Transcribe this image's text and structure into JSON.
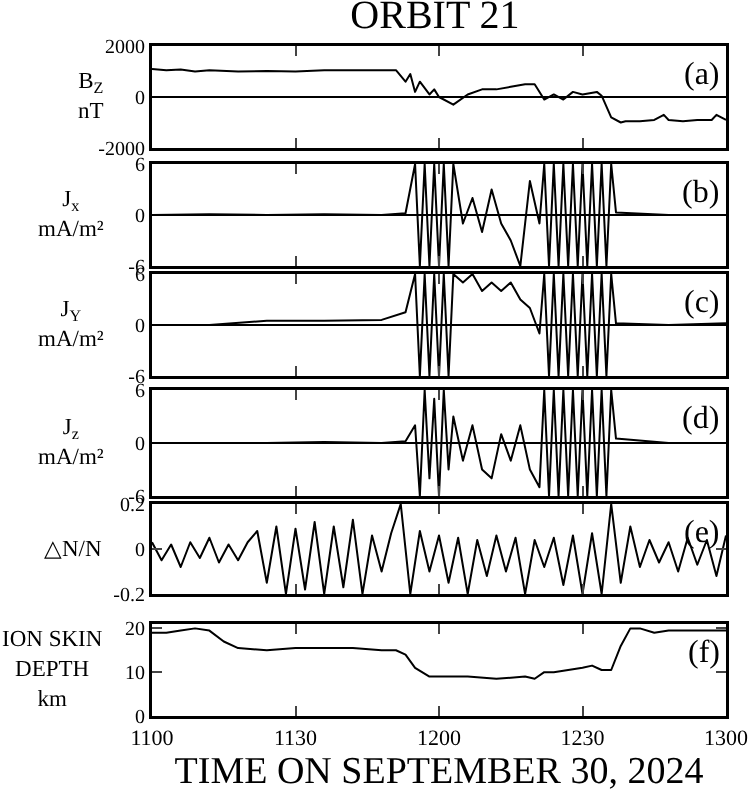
{
  "chart_data": [
    {
      "type": "line",
      "title": "ORBIT 21",
      "ylabel": "B$_{Z}$\nnT",
      "annotations": [
        "(a)"
      ],
      "xlim": [
        "2024-09-30T11:00",
        "2024-09-30T13:00"
      ],
      "xticks": [
        {
          "value": "2024-09-30T11:00",
          "label": null
        },
        {
          "value": "2024-09-30T11:30",
          "label": null
        },
        {
          "value": "2024-09-30T12:00",
          "label": null
        },
        {
          "value": "2024-09-30T12:30",
          "label": null
        },
        {
          "value": "2024-09-30T13:00",
          "label": null
        }
      ],
      "ylim": [
        -2000,
        2000
      ],
      "yticks": [
        -2000,
        0,
        2000
      ],
      "tick_labels": "y",
      "ref_lines": [
        {
          "axis": "y",
          "value": 0
        }
      ],
      "series": [
        {
          "color": "#000000",
          "x": [
            "2024-09-30T11:00",
            "2024-09-30T11:03",
            "2024-09-30T11:06",
            "2024-09-30T11:09",
            "2024-09-30T11:12",
            "2024-09-30T11:18",
            "2024-09-30T11:24",
            "2024-09-30T11:30",
            "2024-09-30T11:36",
            "2024-09-30T11:42",
            "2024-09-30T11:51",
            "2024-09-30T11:53",
            "2024-09-30T11:54",
            "2024-09-30T11:55",
            "2024-09-30T11:56",
            "2024-09-30T11:58",
            "2024-09-30T11:59",
            "2024-09-30T12:00",
            "2024-09-30T12:03",
            "2024-09-30T12:06",
            "2024-09-30T12:09",
            "2024-09-30T12:12",
            "2024-09-30T12:15",
            "2024-09-30T12:18",
            "2024-09-30T12:20",
            "2024-09-30T12:22",
            "2024-09-30T12:24",
            "2024-09-30T12:26",
            "2024-09-30T12:28",
            "2024-09-30T12:30",
            "2024-09-30T12:33",
            "2024-09-30T12:34",
            "2024-09-30T12:36",
            "2024-09-30T12:38",
            "2024-09-30T12:39",
            "2024-09-30T12:42",
            "2024-09-30T12:45",
            "2024-09-30T12:47",
            "2024-09-30T12:48",
            "2024-09-30T12:51",
            "2024-09-30T12:54",
            "2024-09-30T12:57",
            "2024-09-30T12:58",
            "2024-09-30T13:00"
          ],
          "values": [
            1100,
            1050,
            1080,
            1000,
            1050,
            1000,
            1020,
            1000,
            1050,
            1050,
            1050,
            600,
            900,
            200,
            600,
            100,
            300,
            0,
            -300,
            100,
            300,
            300,
            400,
            500,
            500,
            -100,
            100,
            -100,
            200,
            100,
            200,
            50,
            -800,
            -1000,
            -950,
            -950,
            -900,
            -700,
            -900,
            -950,
            -900,
            -900,
            -700,
            -900
          ]
        }
      ]
    },
    {
      "type": "line",
      "ylabel": "J$_{x}$\nmA/m²",
      "annotations": [
        "(b)"
      ],
      "xlim": [
        "2024-09-30T11:00",
        "2024-09-30T13:00"
      ],
      "xticks": [
        {
          "value": "2024-09-30T11:00",
          "label": null
        },
        {
          "value": "2024-09-30T11:30",
          "label": null
        },
        {
          "value": "2024-09-30T12:00",
          "label": null
        },
        {
          "value": "2024-09-30T12:30",
          "label": null
        },
        {
          "value": "2024-09-30T13:00",
          "label": null
        }
      ],
      "ylim": [
        -6,
        6
      ],
      "yticks": [
        -6,
        0,
        6
      ],
      "tick_labels": "y",
      "ref_lines": [
        {
          "axis": "y",
          "value": 0
        }
      ],
      "series": [
        {
          "color": "#000000",
          "x": [
            "2024-09-30T11:00",
            "2024-09-30T11:12",
            "2024-09-30T11:24",
            "2024-09-30T11:36",
            "2024-09-30T11:48",
            "2024-09-30T11:53",
            "2024-09-30T11:55",
            "2024-09-30T11:56",
            "2024-09-30T11:57",
            "2024-09-30T11:58",
            "2024-09-30T11:59",
            "2024-09-30T12:00",
            "2024-09-30T12:01",
            "2024-09-30T12:02",
            "2024-09-30T12:03",
            "2024-09-30T12:05",
            "2024-09-30T12:07",
            "2024-09-30T12:09",
            "2024-09-30T12:11",
            "2024-09-30T12:13",
            "2024-09-30T12:15",
            "2024-09-30T12:17",
            "2024-09-30T12:19",
            "2024-09-30T12:21",
            "2024-09-30T12:22",
            "2024-09-30T12:23",
            "2024-09-30T12:24",
            "2024-09-30T12:25",
            "2024-09-30T12:26",
            "2024-09-30T12:27",
            "2024-09-30T12:28",
            "2024-09-30T12:29",
            "2024-09-30T12:30",
            "2024-09-30T12:31",
            "2024-09-30T12:32",
            "2024-09-30T12:33",
            "2024-09-30T12:34",
            "2024-09-30T12:35",
            "2024-09-30T12:36",
            "2024-09-30T12:37",
            "2024-09-30T12:48",
            "2024-09-30T13:00"
          ],
          "values": [
            0,
            0.1,
            0,
            0.1,
            0,
            0.2,
            6,
            -6,
            6,
            -6,
            6,
            -6,
            6,
            -6,
            6,
            -1,
            2,
            -2,
            3,
            -1,
            -3,
            -6,
            4,
            -1,
            6,
            -6,
            6,
            -6,
            6,
            -6,
            6,
            -6,
            6,
            -6,
            6,
            -6,
            6,
            -6,
            6,
            0.3,
            0,
            0
          ]
        }
      ]
    },
    {
      "type": "line",
      "ylabel": "J$_{Y}$\nmA/m²",
      "annotations": [
        "(c)"
      ],
      "xlim": [
        "2024-09-30T11:00",
        "2024-09-30T13:00"
      ],
      "xticks": [
        {
          "value": "2024-09-30T11:00",
          "label": null
        },
        {
          "value": "2024-09-30T11:30",
          "label": null
        },
        {
          "value": "2024-09-30T12:00",
          "label": null
        },
        {
          "value": "2024-09-30T12:30",
          "label": null
        },
        {
          "value": "2024-09-30T13:00",
          "label": null
        }
      ],
      "ylim": [
        -6,
        6
      ],
      "yticks": [
        -6,
        0,
        6
      ],
      "tick_labels": "y",
      "ref_lines": [
        {
          "axis": "y",
          "value": 0
        }
      ],
      "series": [
        {
          "color": "#000000",
          "x": [
            "2024-09-30T11:00",
            "2024-09-30T11:12",
            "2024-09-30T11:24",
            "2024-09-30T11:36",
            "2024-09-30T11:48",
            "2024-09-30T11:53",
            "2024-09-30T11:55",
            "2024-09-30T11:56",
            "2024-09-30T11:57",
            "2024-09-30T11:58",
            "2024-09-30T11:59",
            "2024-09-30T12:00",
            "2024-09-30T12:01",
            "2024-09-30T12:02",
            "2024-09-30T12:03",
            "2024-09-30T12:05",
            "2024-09-30T12:07",
            "2024-09-30T12:09",
            "2024-09-30T12:11",
            "2024-09-30T12:13",
            "2024-09-30T12:15",
            "2024-09-30T12:17",
            "2024-09-30T12:19",
            "2024-09-30T12:21",
            "2024-09-30T12:22",
            "2024-09-30T12:23",
            "2024-09-30T12:24",
            "2024-09-30T12:25",
            "2024-09-30T12:26",
            "2024-09-30T12:27",
            "2024-09-30T12:28",
            "2024-09-30T12:29",
            "2024-09-30T12:30",
            "2024-09-30T12:31",
            "2024-09-30T12:32",
            "2024-09-30T12:33",
            "2024-09-30T12:34",
            "2024-09-30T12:35",
            "2024-09-30T12:36",
            "2024-09-30T12:37",
            "2024-09-30T12:48",
            "2024-09-30T13:00"
          ],
          "values": [
            0,
            0,
            0.5,
            0.5,
            0.6,
            1.5,
            6,
            -6,
            6,
            -6,
            6,
            -6,
            6,
            -6,
            6,
            5,
            6,
            4,
            5,
            4,
            5,
            3,
            2,
            -1,
            6,
            -6,
            6,
            -6,
            6,
            -6,
            6,
            -6,
            6,
            -6,
            6,
            -6,
            6,
            -6,
            6,
            0.2,
            0,
            0.2
          ]
        }
      ]
    },
    {
      "type": "line",
      "ylabel": "J$_{z}$\nmA/m²",
      "annotations": [
        "(d)"
      ],
      "xlim": [
        "2024-09-30T11:00",
        "2024-09-30T13:00"
      ],
      "xticks": [
        {
          "value": "2024-09-30T11:00",
          "label": null
        },
        {
          "value": "2024-09-30T11:30",
          "label": null
        },
        {
          "value": "2024-09-30T12:00",
          "label": null
        },
        {
          "value": "2024-09-30T12:30",
          "label": null
        },
        {
          "value": "2024-09-30T13:00",
          "label": null
        }
      ],
      "ylim": [
        -6,
        6
      ],
      "yticks": [
        -6,
        0,
        6
      ],
      "tick_labels": "y",
      "ref_lines": [
        {
          "axis": "y",
          "value": 0
        }
      ],
      "series": [
        {
          "color": "#000000",
          "x": [
            "2024-09-30T11:00",
            "2024-09-30T11:12",
            "2024-09-30T11:24",
            "2024-09-30T11:36",
            "2024-09-30T11:48",
            "2024-09-30T11:53",
            "2024-09-30T11:55",
            "2024-09-30T11:56",
            "2024-09-30T11:57",
            "2024-09-30T11:58",
            "2024-09-30T11:59",
            "2024-09-30T12:00",
            "2024-09-30T12:01",
            "2024-09-30T12:02",
            "2024-09-30T12:03",
            "2024-09-30T12:05",
            "2024-09-30T12:07",
            "2024-09-30T12:09",
            "2024-09-30T12:11",
            "2024-09-30T12:13",
            "2024-09-30T12:15",
            "2024-09-30T12:17",
            "2024-09-30T12:19",
            "2024-09-30T12:21",
            "2024-09-30T12:22",
            "2024-09-30T12:23",
            "2024-09-30T12:24",
            "2024-09-30T12:25",
            "2024-09-30T12:26",
            "2024-09-30T12:27",
            "2024-09-30T12:28",
            "2024-09-30T12:29",
            "2024-09-30T12:30",
            "2024-09-30T12:31",
            "2024-09-30T12:32",
            "2024-09-30T12:33",
            "2024-09-30T12:34",
            "2024-09-30T12:35",
            "2024-09-30T12:36",
            "2024-09-30T12:37",
            "2024-09-30T12:48",
            "2024-09-30T13:00"
          ],
          "values": [
            0,
            0,
            0,
            0.1,
            0,
            0.2,
            2,
            -6,
            6,
            -4,
            5,
            -6,
            6,
            -3,
            3,
            -2,
            2,
            -3,
            -4,
            1,
            -2,
            2,
            -3,
            -5,
            6,
            -6,
            6,
            -6,
            6,
            -6,
            6,
            -6,
            6,
            -6,
            6,
            -6,
            6,
            -6,
            6,
            0.5,
            0,
            0
          ]
        }
      ]
    },
    {
      "type": "line",
      "ylabel": "△N/N",
      "annotations": [
        "(e)"
      ],
      "xlim": [
        "2024-09-30T11:00",
        "2024-09-30T13:00"
      ],
      "xticks": [
        {
          "value": "2024-09-30T11:00",
          "label": null
        },
        {
          "value": "2024-09-30T11:30",
          "label": null
        },
        {
          "value": "2024-09-30T12:00",
          "label": null
        },
        {
          "value": "2024-09-30T12:30",
          "label": null
        },
        {
          "value": "2024-09-30T13:00",
          "label": null
        }
      ],
      "ylim": [
        -0.2,
        0.2
      ],
      "yticks": [
        -0.2,
        0,
        0.2
      ],
      "tick_labels": "y",
      "series": [
        {
          "color": "#000000",
          "x": [
            "2024-09-30T11:00",
            "2024-09-30T11:02",
            "2024-09-30T11:04",
            "2024-09-30T11:06",
            "2024-09-30T11:08",
            "2024-09-30T11:10",
            "2024-09-30T11:12",
            "2024-09-30T11:14",
            "2024-09-30T11:16",
            "2024-09-30T11:18",
            "2024-09-30T11:20",
            "2024-09-30T11:22",
            "2024-09-30T11:24",
            "2024-09-30T11:26",
            "2024-09-30T11:28",
            "2024-09-30T11:30",
            "2024-09-30T11:32",
            "2024-09-30T11:34",
            "2024-09-30T11:36",
            "2024-09-30T11:38",
            "2024-09-30T11:40",
            "2024-09-30T11:42",
            "2024-09-30T11:44",
            "2024-09-30T11:46",
            "2024-09-30T11:48",
            "2024-09-30T11:50",
            "2024-09-30T11:52",
            "2024-09-30T11:54",
            "2024-09-30T11:56",
            "2024-09-30T11:58",
            "2024-09-30T12:00",
            "2024-09-30T12:02",
            "2024-09-30T12:04",
            "2024-09-30T12:06",
            "2024-09-30T12:08",
            "2024-09-30T12:10",
            "2024-09-30T12:12",
            "2024-09-30T12:14",
            "2024-09-30T12:16",
            "2024-09-30T12:18",
            "2024-09-30T12:20",
            "2024-09-30T12:22",
            "2024-09-30T12:24",
            "2024-09-30T12:26",
            "2024-09-30T12:28",
            "2024-09-30T12:30",
            "2024-09-30T12:32",
            "2024-09-30T12:34",
            "2024-09-30T12:36",
            "2024-09-30T12:38",
            "2024-09-30T12:40",
            "2024-09-30T12:42",
            "2024-09-30T12:44",
            "2024-09-30T12:46",
            "2024-09-30T12:48",
            "2024-09-30T12:50",
            "2024-09-30T12:52",
            "2024-09-30T12:54",
            "2024-09-30T12:56",
            "2024-09-30T12:58",
            "2024-09-30T13:00"
          ],
          "values": [
            0.03,
            -0.05,
            0.02,
            -0.08,
            0.03,
            -0.04,
            0.05,
            -0.06,
            0.02,
            -0.05,
            0.03,
            0.08,
            -0.15,
            0.1,
            -0.2,
            0.09,
            -0.18,
            0.12,
            -0.2,
            0.1,
            -0.17,
            0.13,
            -0.2,
            0.06,
            -0.1,
            0.07,
            0.2,
            -0.2,
            0.08,
            -0.1,
            0.06,
            -0.15,
            0.05,
            -0.2,
            0.04,
            -0.12,
            0.06,
            -0.1,
            0.05,
            -0.2,
            0.04,
            -0.08,
            0.05,
            -0.16,
            0.06,
            -0.2,
            0.07,
            -0.2,
            0.2,
            -0.15,
            0.1,
            -0.08,
            0.04,
            -0.06,
            0.03,
            -0.1,
            0.05,
            -0.07,
            0.04,
            -0.12,
            0.06
          ]
        }
      ]
    },
    {
      "type": "line",
      "ylabel": "ION SKIN\nDEPTH\nkm",
      "xlabel": "TIME ON SEPTEMBER 30, 2024",
      "annotations": [
        "(f)"
      ],
      "xlim": [
        "2024-09-30T11:00",
        "2024-09-30T13:00"
      ],
      "xticks": [
        {
          "value": "2024-09-30T11:00",
          "label": "1100"
        },
        {
          "value": "2024-09-30T11:30",
          "label": "1130"
        },
        {
          "value": "2024-09-30T12:00",
          "label": "1200"
        },
        {
          "value": "2024-09-30T12:30",
          "label": "1230"
        },
        {
          "value": "2024-09-30T13:00",
          "label": "1300"
        }
      ],
      "ylim": [
        0,
        21
      ],
      "yticks": [
        0,
        10,
        20
      ],
      "series": [
        {
          "color": "#000000",
          "x": [
            "2024-09-30T11:00",
            "2024-09-30T11:03",
            "2024-09-30T11:06",
            "2024-09-30T11:09",
            "2024-09-30T11:12",
            "2024-09-30T11:15",
            "2024-09-30T11:18",
            "2024-09-30T11:24",
            "2024-09-30T11:30",
            "2024-09-30T11:36",
            "2024-09-30T11:42",
            "2024-09-30T11:48",
            "2024-09-30T11:51",
            "2024-09-30T11:53",
            "2024-09-30T11:55",
            "2024-09-30T11:58",
            "2024-09-30T12:00",
            "2024-09-30T12:06",
            "2024-09-30T12:12",
            "2024-09-30T12:18",
            "2024-09-30T12:20",
            "2024-09-30T12:22",
            "2024-09-30T12:24",
            "2024-09-30T12:27",
            "2024-09-30T12:30",
            "2024-09-30T12:32",
            "2024-09-30T12:34",
            "2024-09-30T12:36",
            "2024-09-30T12:38",
            "2024-09-30T12:40",
            "2024-09-30T12:42",
            "2024-09-30T12:45",
            "2024-09-30T12:48",
            "2024-09-30T12:54",
            "2024-09-30T13:00"
          ],
          "values": [
            19,
            19,
            19.5,
            20,
            19.5,
            17,
            15.5,
            15,
            15.5,
            15.5,
            15.5,
            15,
            15,
            14,
            11,
            9,
            9,
            9,
            8.5,
            9,
            8.5,
            10,
            10,
            10.5,
            11,
            11.5,
            10.5,
            10.5,
            16,
            20,
            20,
            19,
            19.5,
            19.5,
            19.5
          ]
        }
      ]
    }
  ]
}
